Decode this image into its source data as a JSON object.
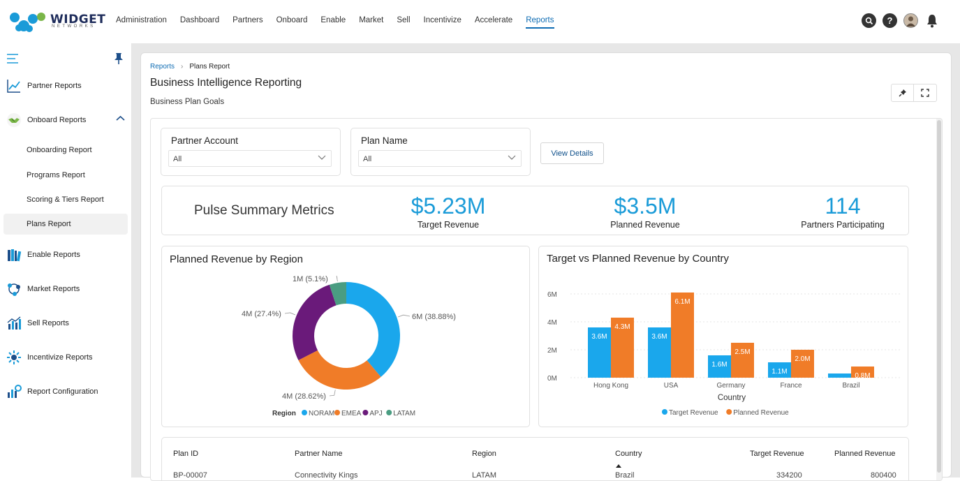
{
  "brand": {
    "name": "WIDGET",
    "sub": "NETWORKS",
    "colors": {
      "blue": "#1a9bd8",
      "green": "#7ab648",
      "navy": "#1d2b5a"
    }
  },
  "nav": {
    "items": [
      "Administration",
      "Dashboard",
      "Partners",
      "Onboard",
      "Enable",
      "Market",
      "Sell",
      "Incentivize",
      "Accelerate",
      "Reports"
    ],
    "active": "Reports"
  },
  "topicons": [
    "search-icon",
    "help-icon",
    "user-avatar",
    "bell-icon"
  ],
  "sidebar": {
    "partner_reports": "Partner Reports",
    "onboard_reports": "Onboard Reports",
    "sub": [
      "Onboarding Report",
      "Programs Report",
      "Scoring & Tiers Report",
      "Plans Report"
    ],
    "enable_reports": "Enable Reports",
    "market_reports": "Market Reports",
    "sell_reports": "Sell Reports",
    "incentivize_reports": "Incentivize Reports",
    "report_configuration": "Report Configuration"
  },
  "breadcrumb": {
    "root": "Reports",
    "current": "Plans Report"
  },
  "page": {
    "title": "Business Intelligence Reporting",
    "subtitle": "Business Plan Goals"
  },
  "filters": {
    "partner_account": {
      "label": "Partner Account",
      "value": "All"
    },
    "plan_name": {
      "label": "Plan Name",
      "value": "All"
    },
    "view_details": "View Details"
  },
  "metrics": {
    "title": "Pulse Summary Metrics",
    "items": [
      {
        "value": "$5.23M",
        "label": "Target Revenue"
      },
      {
        "value": "$3.5M",
        "label": "Planned Revenue"
      },
      {
        "value": "114",
        "label": "Partners Participating"
      }
    ]
  },
  "chart_data": [
    {
      "type": "pie",
      "title": "Planned Revenue by Region",
      "legend_title": "Region",
      "slices": [
        {
          "name": "NORAM",
          "value": 38.88,
          "label": "6M (38.88%)",
          "color": "#1aa7ec"
        },
        {
          "name": "EMEA",
          "value": 28.62,
          "label": "4M (28.62%)",
          "color": "#f07c28"
        },
        {
          "name": "APJ",
          "value": 27.4,
          "label": "4M (27.4%)",
          "color": "#6a1a7a"
        },
        {
          "name": "LATAM",
          "value": 5.1,
          "label": "1M (5.1%)",
          "color": "#4a9d82"
        }
      ]
    },
    {
      "type": "bar",
      "title": "Target vs Planned Revenue by Country",
      "xlabel": "Country",
      "categories": [
        "Hong Kong",
        "USA",
        "Germany",
        "France",
        "Brazil"
      ],
      "yticks": [
        "0M",
        "2M",
        "4M",
        "6M"
      ],
      "ylim": [
        0,
        6.5
      ],
      "series": [
        {
          "name": "Target Revenue",
          "color": "#1aa7ec",
          "values": [
            3.6,
            3.6,
            1.6,
            1.1,
            0.3
          ],
          "labels": [
            "3.6M",
            "3.6M",
            "1.6M",
            "1.1M",
            ""
          ]
        },
        {
          "name": "Planned Revenue",
          "color": "#f07c28",
          "values": [
            4.3,
            6.1,
            2.5,
            2.0,
            0.8
          ],
          "labels": [
            "4.3M",
            "6.1M",
            "2.5M",
            "2.0M",
            "0.8M"
          ]
        }
      ]
    }
  ],
  "table": {
    "headers": [
      "Plan ID",
      "Partner Name",
      "Region",
      "Country",
      "Target Revenue",
      "Planned Revenue"
    ],
    "rows": [
      [
        "BP-00007",
        "Connectivity Kings",
        "LATAM",
        "Brazil",
        "334200",
        "800400"
      ]
    ]
  }
}
